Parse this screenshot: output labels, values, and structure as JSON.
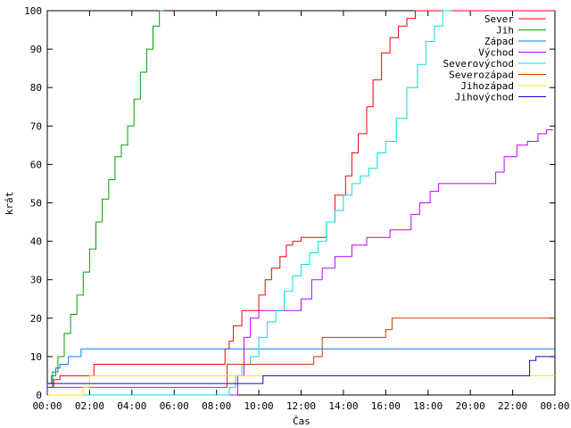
{
  "chart_data": {
    "type": "line",
    "title": "",
    "xlabel": "Čas",
    "ylabel": "krát",
    "xlim": [
      0,
      24
    ],
    "ylim": [
      0,
      100
    ],
    "x_ticks": [
      "00:00",
      "02:00",
      "04:00",
      "06:00",
      "08:00",
      "10:00",
      "12:00",
      "14:00",
      "16:00",
      "18:00",
      "20:00",
      "22:00",
      "00:00"
    ],
    "y_ticks": [
      0,
      10,
      20,
      30,
      40,
      50,
      60,
      70,
      80,
      90,
      100
    ],
    "grid": false,
    "legend_position": "top-right",
    "x_unit": "hours",
    "series": [
      {
        "name": "Sever",
        "color": "#ff0000",
        "x": [
          0,
          0.3,
          0.6,
          1.0,
          1.5,
          2.2,
          3.3,
          5.5,
          8.4,
          8.6,
          8.8,
          9.2,
          9.6,
          10.0,
          10.3,
          10.6,
          11.0,
          11.3,
          11.6,
          12.0,
          12.5,
          13.2,
          13.6,
          14.1,
          14.4,
          14.7,
          15.1,
          15.4,
          15.8,
          16.2,
          16.6,
          17.0,
          17.4,
          17.8,
          18.1,
          24.0
        ],
        "y": [
          0,
          2,
          4,
          5,
          5,
          5,
          8,
          8,
          8,
          12,
          14,
          18,
          22,
          22,
          26,
          30,
          33,
          36,
          39,
          40,
          41,
          41,
          45,
          52,
          57,
          63,
          68,
          75,
          82,
          89,
          93,
          96,
          98,
          100,
          100,
          100
        ]
      },
      {
        "name": "Jih",
        "color": "#00a000",
        "x": [
          0,
          0.25,
          0.5,
          0.8,
          1.1,
          1.4,
          1.7,
          2.0,
          2.3,
          2.6,
          2.9,
          3.2,
          3.5,
          3.8,
          4.1,
          4.4,
          4.7,
          5.0,
          5.3,
          5.5
        ],
        "y": [
          0,
          2,
          6,
          10,
          16,
          21,
          26,
          32,
          38,
          45,
          51,
          56,
          62,
          65,
          70,
          77,
          84,
          90,
          96,
          100
        ]
      },
      {
        "name": "Západ",
        "color": "#0080ff",
        "x": [
          0,
          0.2,
          0.4,
          0.6,
          0.8,
          1.0,
          1.6,
          3.6,
          9.0,
          24.0
        ],
        "y": [
          0,
          3,
          5,
          7,
          8,
          8,
          10,
          12,
          12,
          12
        ]
      },
      {
        "name": "Východ",
        "color": "#c000ff",
        "x": [
          0,
          9.0,
          9.3,
          9.6,
          10.0,
          10.5,
          11.2,
          12.0,
          12.5,
          13.0,
          13.6,
          14.4,
          15.1,
          16.2,
          17.2,
          17.6,
          18.1,
          18.5,
          19.3,
          20.0,
          21.2,
          21.6,
          22.2,
          22.7,
          23.2,
          23.6,
          23.9
        ],
        "y": [
          0,
          0,
          5,
          15,
          20,
          22,
          22,
          22,
          25,
          30,
          33,
          36,
          39,
          41,
          43,
          47,
          50,
          53,
          55,
          55,
          55,
          58,
          62,
          65,
          66,
          68,
          69
        ]
      },
      {
        "name": "Severovýchod",
        "color": "#00e0e0",
        "x": [
          0,
          8.6,
          8.9,
          9.2,
          9.6,
          10.0,
          10.4,
          10.8,
          11.2,
          11.6,
          12.0,
          12.4,
          12.8,
          13.2,
          13.6,
          14.0,
          14.4,
          14.8,
          15.2,
          15.6,
          16.0,
          16.5,
          17.0,
          17.5,
          17.9,
          18.3,
          18.7,
          19.1
        ],
        "y": [
          0,
          0,
          2,
          5,
          8,
          10,
          15,
          19,
          22,
          27,
          31,
          34,
          37,
          40,
          45,
          48,
          52,
          55,
          57,
          59,
          63,
          66,
          72,
          80,
          86,
          92,
          96,
          100
        ]
      },
      {
        "name": "Severozápad",
        "color": "#c04000",
        "x": [
          0,
          0.5,
          8.5,
          8.7,
          11.3,
          12.6,
          13.0,
          13.3,
          16.0,
          16.3,
          17.0,
          24.0
        ],
        "y": [
          0,
          2,
          2,
          8,
          8,
          8,
          10,
          15,
          15,
          17,
          20,
          20
        ]
      },
      {
        "name": "Jihozápad",
        "color": "#ffe000",
        "x": [
          0,
          1.7,
          2.0,
          3.6,
          9.3,
          10.0,
          24.0
        ],
        "y": [
          0,
          0,
          2,
          5,
          5,
          5,
          5
        ]
      },
      {
        "name": "Jihovýchod",
        "color": "#2000c0",
        "x": [
          0,
          1.2,
          1.6,
          3.6,
          10.2,
          11.5,
          12.0,
          22.6,
          22.8,
          23.1,
          24.0
        ],
        "y": [
          0,
          3,
          3,
          3,
          3,
          5,
          5,
          5,
          5,
          9,
          10
        ]
      }
    ]
  }
}
